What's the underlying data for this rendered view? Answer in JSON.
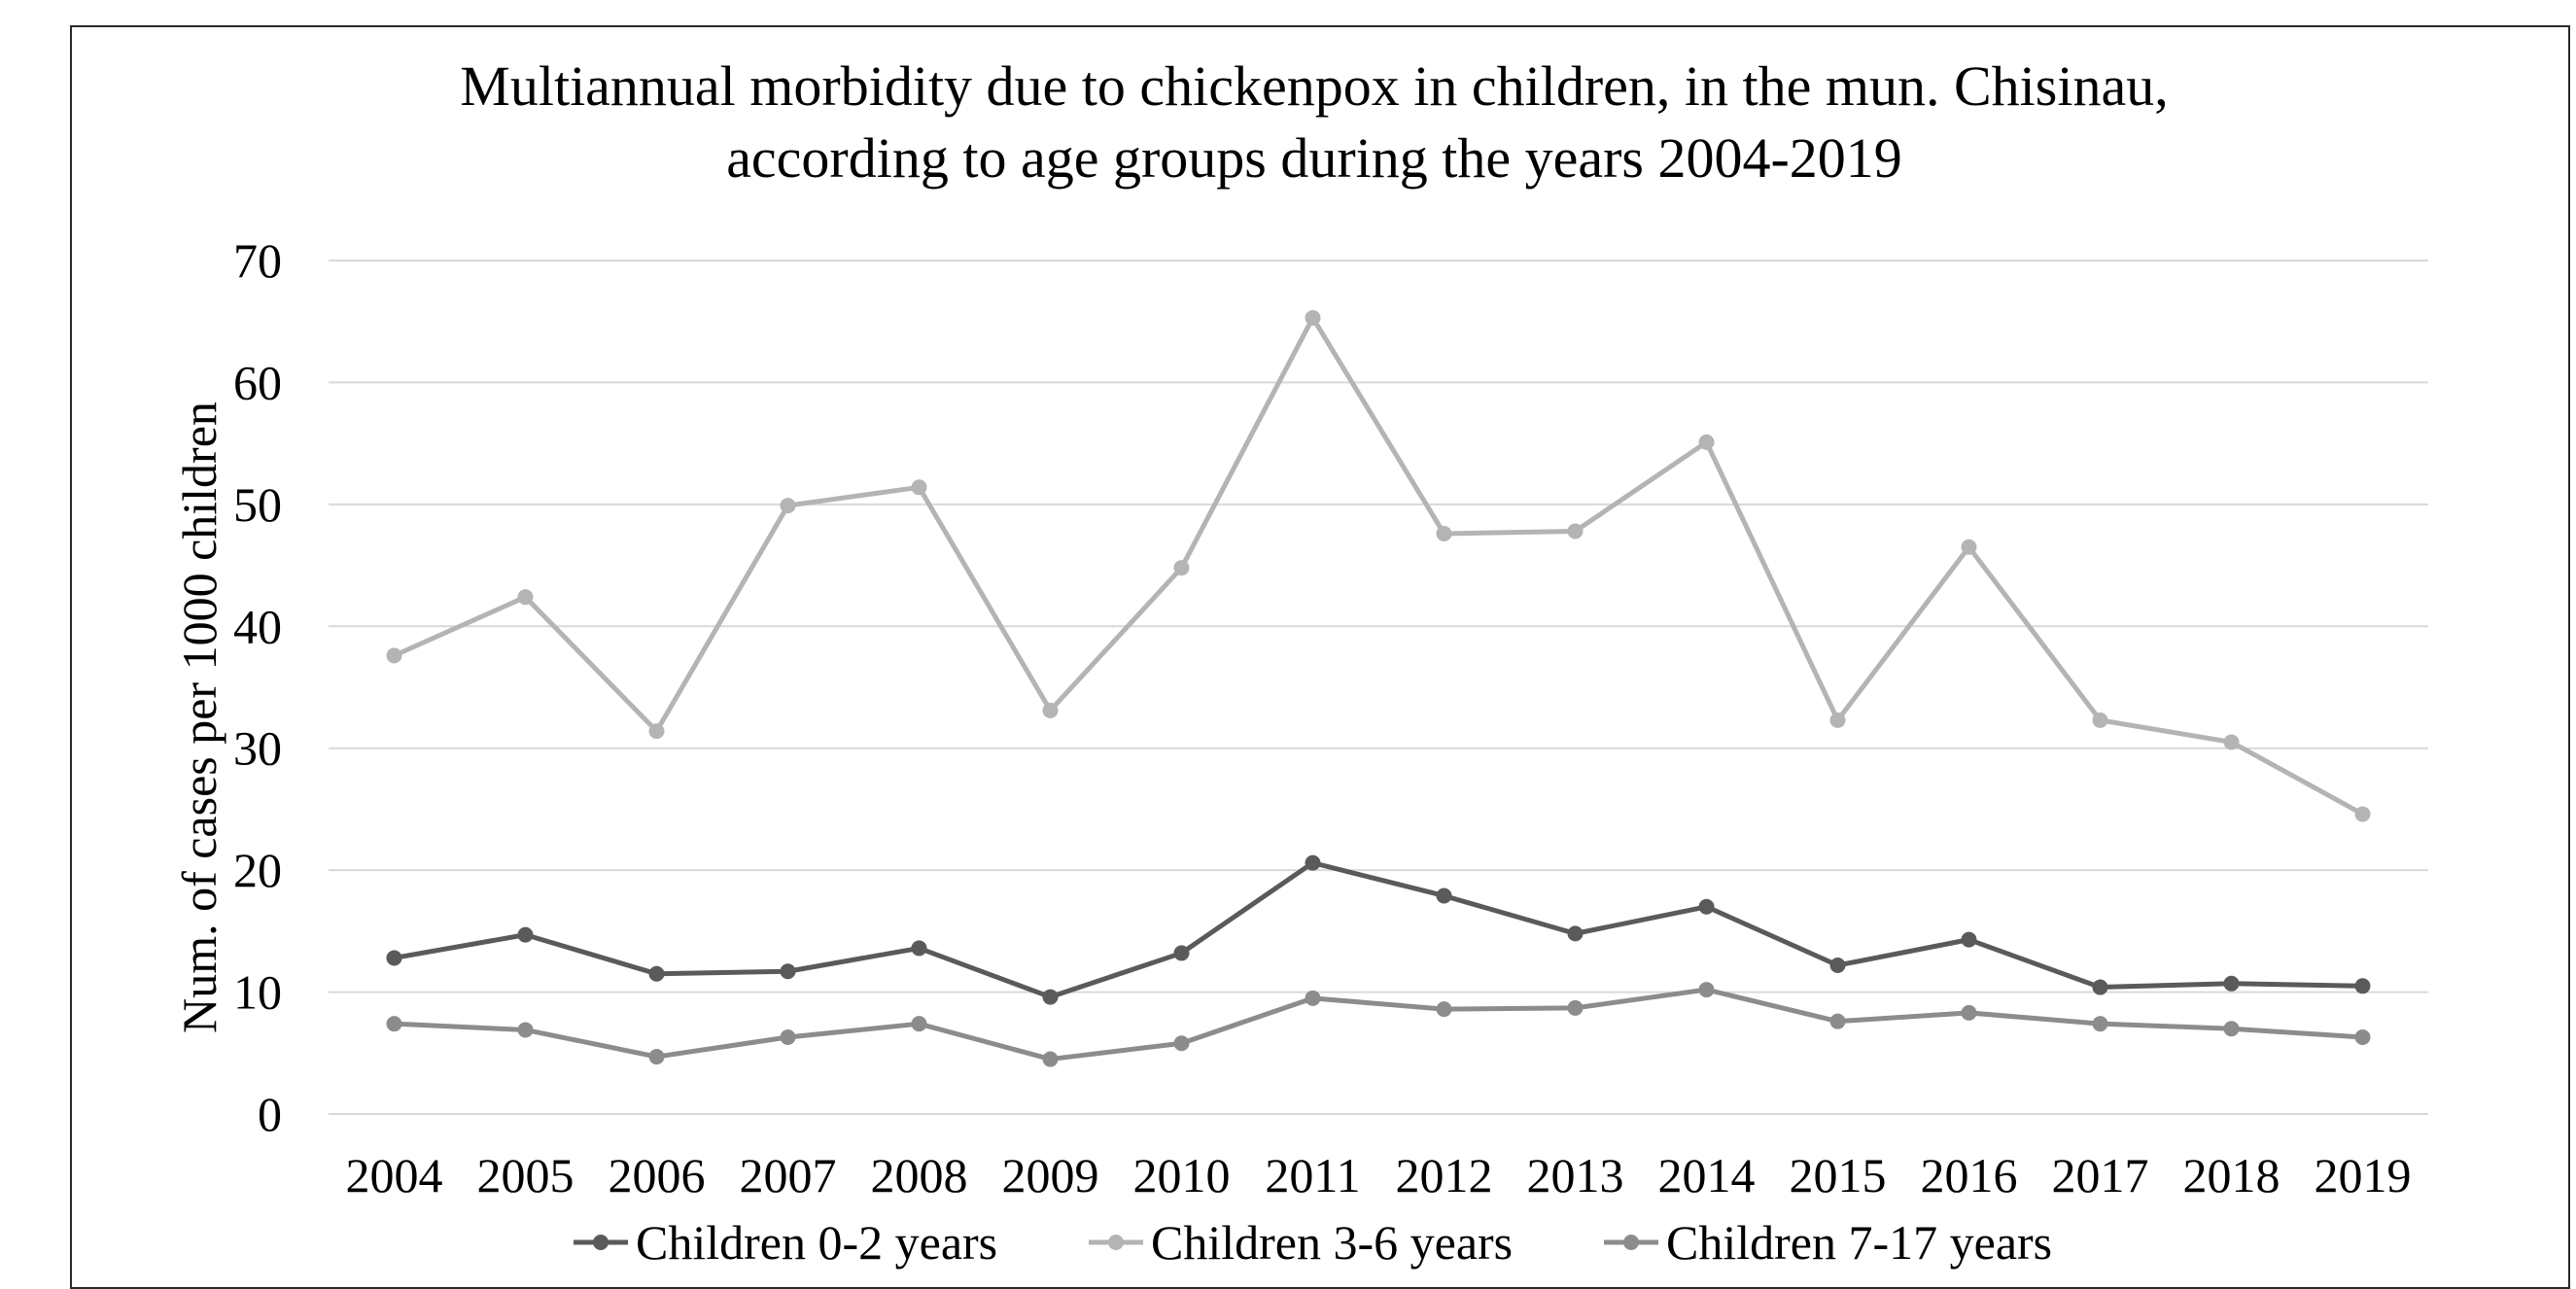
{
  "chart_data": {
    "type": "line",
    "title": [
      "Multiannual morbidity due to chickenpox in children, in the mun. Chisinau,",
      "according to age groups during the years 2004-2019"
    ],
    "xlabel": "",
    "ylabel": "Num. of cases per 1000 children",
    "ylim": [
      0,
      70
    ],
    "yticks": [
      "0",
      "10",
      "20",
      "30",
      "40",
      "50",
      "60",
      "70"
    ],
    "categories": [
      "2004",
      "2005",
      "2006",
      "2007",
      "2008",
      "2009",
      "2010",
      "2011",
      "2012",
      "2013",
      "2014",
      "2015",
      "2016",
      "2017",
      "2018",
      "2019"
    ],
    "grid": "horizontal",
    "legend_position": "bottom",
    "series": [
      {
        "name": "Children 0-2 years",
        "color": "#5a5a5a",
        "values": [
          12.8,
          14.7,
          11.5,
          11.7,
          13.6,
          9.6,
          13.2,
          20.6,
          17.9,
          14.8,
          17.0,
          12.2,
          14.3,
          10.4,
          10.7,
          10.5
        ]
      },
      {
        "name": "Children 3-6 years",
        "color": "#b4b4b4",
        "values": [
          37.6,
          42.4,
          31.4,
          49.9,
          51.4,
          33.1,
          44.8,
          65.3,
          47.6,
          47.8,
          55.1,
          32.3,
          46.5,
          32.3,
          30.5,
          24.6
        ]
      },
      {
        "name": "Children 7-17 years",
        "color": "#8c8c8c",
        "values": [
          7.4,
          6.9,
          4.7,
          6.3,
          7.4,
          4.5,
          5.8,
          9.5,
          8.6,
          8.7,
          10.2,
          7.6,
          8.3,
          7.4,
          7.0,
          6.3
        ]
      }
    ]
  }
}
